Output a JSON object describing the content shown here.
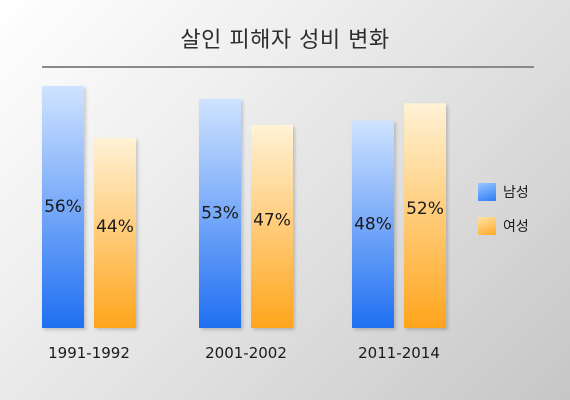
{
  "chart_data": {
    "type": "bar",
    "title": "살인 피해자 성비 변화",
    "categories": [
      "1991-1992",
      "2001-2002",
      "2011-2014"
    ],
    "series": [
      {
        "name": "남성",
        "values": [
          56,
          53,
          48
        ],
        "labels": [
          "56%",
          "53%",
          "48%"
        ],
        "color": "#2b7df7"
      },
      {
        "name": "여성",
        "values": [
          44,
          47,
          52
        ],
        "labels": [
          "44%",
          "47%",
          "52%"
        ],
        "color": "#ffaa26"
      }
    ],
    "ylim": [
      0,
      56
    ],
    "grid": false,
    "legend_position": "right"
  }
}
